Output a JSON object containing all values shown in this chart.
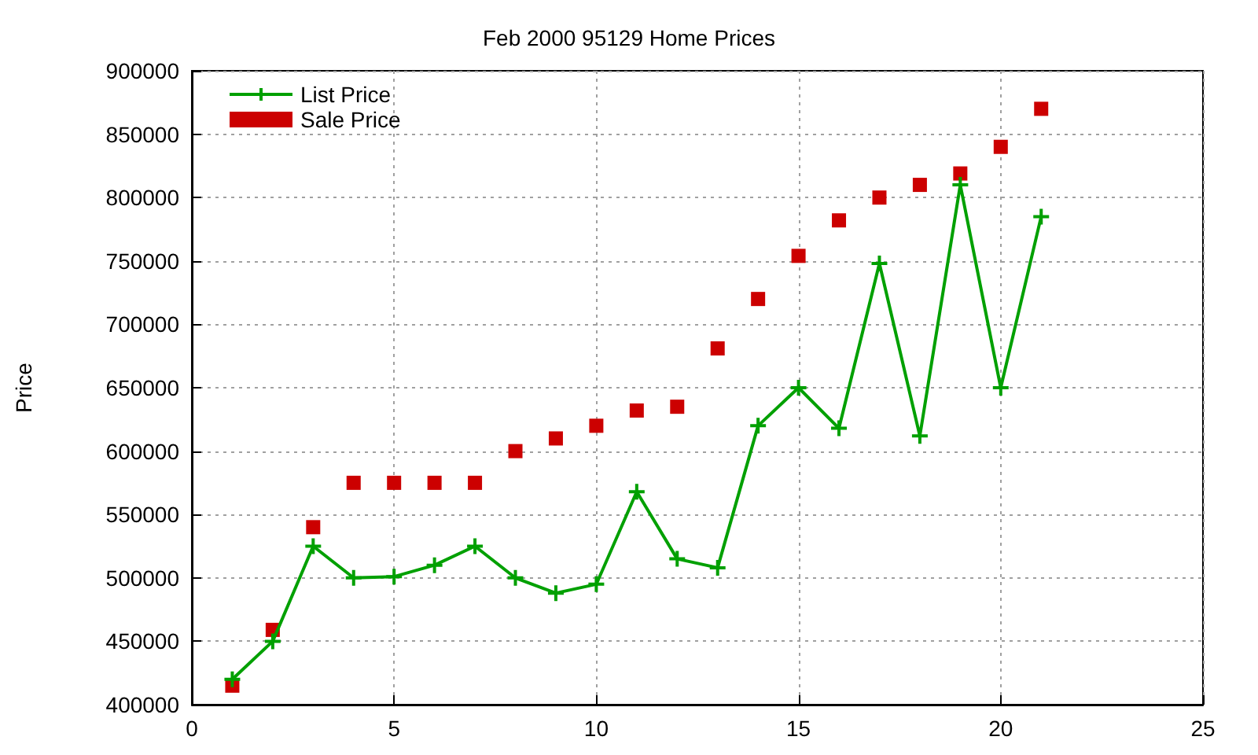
{
  "chart_data": {
    "type": "line",
    "title": "Feb 2000 95129 Home Prices",
    "ylabel": "Price",
    "x": [
      1,
      2,
      3,
      4,
      5,
      6,
      7,
      8,
      9,
      10,
      11,
      12,
      13,
      14,
      15,
      16,
      17,
      18,
      19,
      20,
      21
    ],
    "series": [
      {
        "name": "List Price",
        "color": "#00a000",
        "marker": "cross",
        "line_style": "solid",
        "values": [
          420000,
          450000,
          525000,
          500000,
          501000,
          510000,
          525000,
          500000,
          488000,
          495000,
          568000,
          515000,
          508000,
          620000,
          650000,
          618000,
          748000,
          612000,
          810000,
          650000,
          785000
        ]
      },
      {
        "name": "Sale Price",
        "type": "scatter",
        "color": "#cc0000",
        "marker": "square",
        "values": [
          415000,
          459000,
          540000,
          575000,
          575000,
          575000,
          575000,
          600000,
          610000,
          620000,
          632000,
          635000,
          681000,
          720000,
          754000,
          782000,
          800000,
          810000,
          819000,
          840000,
          870000
        ]
      }
    ],
    "xlim": [
      0,
      25
    ],
    "xticks": [
      0,
      5,
      10,
      15,
      20,
      25
    ],
    "ylim": [
      400000,
      900000
    ],
    "yticks": [
      400000,
      450000,
      500000,
      550000,
      600000,
      650000,
      700000,
      750000,
      800000,
      850000,
      900000
    ],
    "grid": true,
    "legend": "top left"
  }
}
